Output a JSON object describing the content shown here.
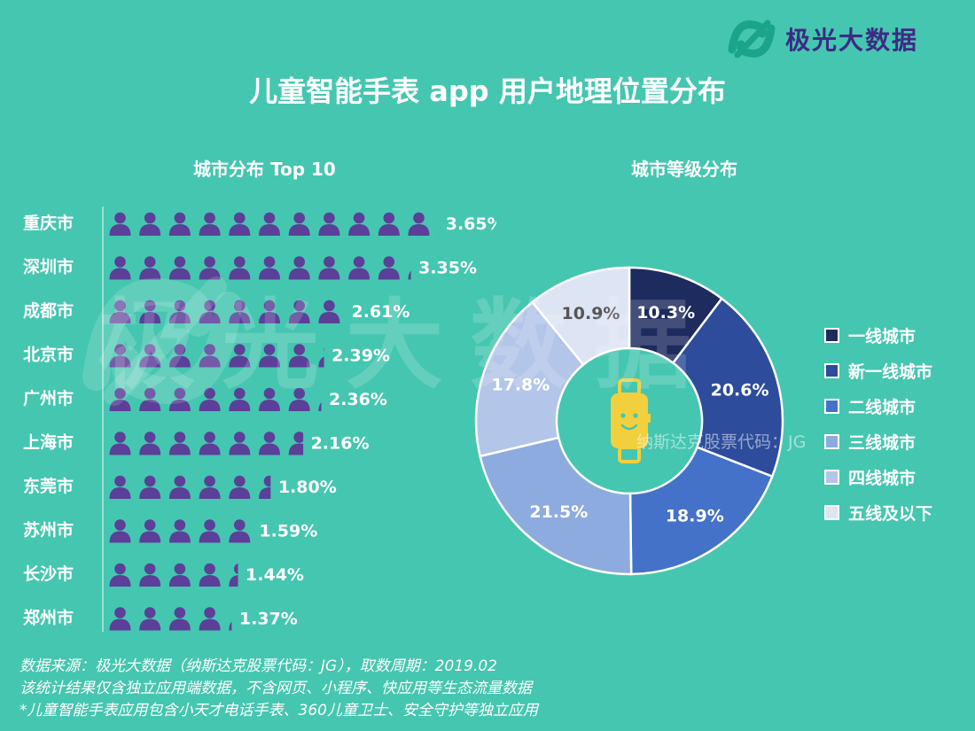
{
  "brand": {
    "name": "极光大数据",
    "color": "#3d2b84"
  },
  "title": "儿童智能手表 app 用户地理位置分布",
  "watermark": {
    "text": "极光大数据",
    "subtext": "纳斯达克股票代码：JG"
  },
  "footer": {
    "lines": [
      "数据来源：极光大数据（纳斯达克股票代码：JG），取数周期：2019.02",
      "该统计结果仅含独立应用端数据，不含网页、小程序、快应用等生态流量数据",
      "*儿童智能手表应用包含小天才电话手表、360儿童卫士、安全守护等独立应用"
    ]
  },
  "colors": {
    "background": "#45c6b0",
    "person_icon": "#5b3f98"
  },
  "chart_data": [
    {
      "type": "bar",
      "title": "城市分布 Top 10",
      "encoding": "pictogram",
      "categories": [
        "重庆市",
        "深圳市",
        "成都市",
        "北京市",
        "广州市",
        "上海市",
        "东莞市",
        "苏州市",
        "长沙市",
        "郑州市"
      ],
      "values": [
        3.65,
        3.35,
        2.61,
        2.39,
        2.36,
        2.16,
        1.8,
        1.59,
        1.44,
        1.37
      ],
      "labels": [
        "3.65%",
        "3.35%",
        "2.61%",
        "2.39%",
        "2.36%",
        "2.16%",
        "1.80%",
        "1.59%",
        "1.44%",
        "1.37%"
      ],
      "unit": "%",
      "icon": "person-icon",
      "value_per_icon": 0.33
    },
    {
      "type": "pie",
      "donut": true,
      "title": "城市等级分布",
      "center_icon": "smartwatch-icon",
      "categories": [
        "一线城市",
        "新一线城市",
        "二线城市",
        "三线城市",
        "四线城市",
        "五线及以下"
      ],
      "values": [
        10.3,
        20.6,
        18.9,
        21.5,
        17.8,
        10.9
      ],
      "labels": [
        "10.3%",
        "20.6%",
        "18.9%",
        "21.5%",
        "17.8%",
        "10.9%"
      ],
      "colors": [
        "#1d2b5e",
        "#2d4c9b",
        "#4472c8",
        "#8eabdf",
        "#b3c5e8",
        "#dde4f3"
      ],
      "label_colors": [
        "#ffffff",
        "#ffffff",
        "#ffffff",
        "#ffffff",
        "#ffffff",
        "#555555"
      ],
      "legend_position": "right"
    }
  ]
}
